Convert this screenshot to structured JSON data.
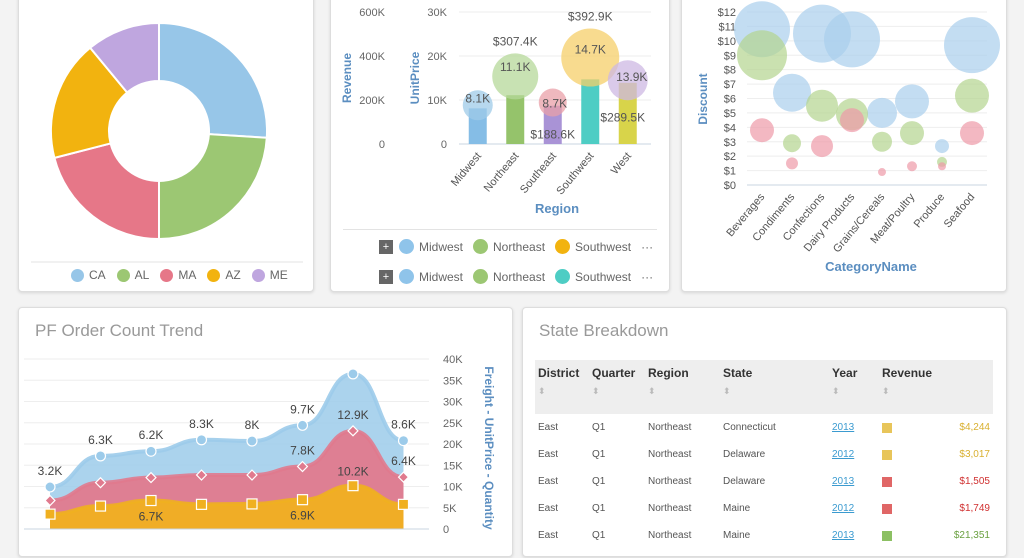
{
  "donut": {
    "legend": [
      {
        "label": "CA",
        "color": "#97c6e8"
      },
      {
        "label": "AL",
        "color": "#9cc773"
      },
      {
        "label": "MA",
        "color": "#e67788"
      },
      {
        "label": "AZ",
        "color": "#f2b30f"
      },
      {
        "label": "ME",
        "color": "#bfa6df"
      }
    ]
  },
  "region_chart": {
    "legend_row1": [
      "Midwest",
      "Northeast",
      "Southwest"
    ],
    "legend_row2": [
      "Midwest",
      "Northeast",
      "Southwest"
    ],
    "more": "···",
    "plus": "+",
    "legend_row1_colors": [
      "#8fc4ea",
      "#9cc773",
      "#f2b30f"
    ],
    "legend_row2_colors": [
      "#8fc4ea",
      "#9cc773",
      "#4ecdc4"
    ]
  },
  "chart_data": [
    {
      "type": "pie",
      "variant": "donut",
      "categories": [
        "CA",
        "AL",
        "MA",
        "AZ",
        "ME"
      ],
      "values": [
        26,
        24,
        21,
        18,
        11
      ],
      "legend": "bottom"
    },
    {
      "type": "bar",
      "categories": [
        "Midwest",
        "Northeast",
        "Southeast",
        "Southwest",
        "West"
      ],
      "xlabel": "Region",
      "ylabel": "UnitPrice",
      "y2label": "Revenue",
      "ylim": [
        0,
        30000
      ],
      "y2lim": [
        0,
        600000
      ],
      "yticks": [
        "0",
        "10K",
        "20K",
        "30K"
      ],
      "y2ticks": [
        "0",
        "200K",
        "400K",
        "600K"
      ],
      "bar_values": [
        8100,
        11100,
        8700,
        14700,
        13900
      ],
      "bar_labels": [
        "8.1K",
        "11.1K",
        "8.7K",
        "14.7K",
        "13.9K"
      ],
      "bar_colors": [
        "#85bde6",
        "#95c36b",
        "#a993d6",
        "#4ecdc4",
        "#d8d44a"
      ],
      "bubble_revenue": [
        176000,
        307400,
        188600,
        392900,
        289500
      ],
      "bubble_labels": [
        "",
        "$307.4K",
        "$188.6K",
        "$392.9K",
        "$289.5K"
      ],
      "bubble_colors": [
        "#9fcbe8",
        "#b6d89a",
        "#eaa0a8",
        "#f5cf6a",
        "#cdb8e3"
      ]
    },
    {
      "type": "scatter",
      "variant": "bubble",
      "categories": [
        "Beverages",
        "Condiments",
        "Confections",
        "Dairy Products",
        "Grains/Cereals",
        "Meat/Poultry",
        "Produce",
        "Seafood"
      ],
      "xlabel": "CategoryName",
      "ylabel": "Discount",
      "ylim": [
        0,
        12
      ],
      "yticks": [
        "$0",
        "$1",
        "$2",
        "$3",
        "$4",
        "$5",
        "$6",
        "$7",
        "$8",
        "$9",
        "$10",
        "$11",
        "$12"
      ],
      "series": [
        {
          "color": "#a9cfec",
          "values": [
            10.8,
            6.4,
            10.5,
            10.1,
            5.0,
            5.8,
            2.7,
            9.7
          ],
          "sizes": [
            28,
            19,
            29,
            28,
            15,
            17,
            7,
            28
          ]
        },
        {
          "color": "#b3d48e",
          "values": [
            9.0,
            2.9,
            5.5,
            4.9,
            3.0,
            3.6,
            1.6,
            6.2
          ],
          "sizes": [
            25,
            9,
            16,
            16,
            10,
            12,
            5,
            17
          ]
        },
        {
          "color": "#ee9aa8",
          "values": [
            3.8,
            1.5,
            2.7,
            4.5,
            0.9,
            1.3,
            1.3,
            3.6
          ],
          "sizes": [
            12,
            6,
            11,
            12,
            4,
            5,
            4,
            12
          ]
        }
      ]
    },
    {
      "type": "area",
      "stacked": true,
      "title": "PF Order Count Trend",
      "y2label": "Freight - UnitPrice - Quantity",
      "ylim": [
        0,
        40000
      ],
      "yticks": [
        "0",
        "5K",
        "10K",
        "15K",
        "20K",
        "25K",
        "30K",
        "35K",
        "40K"
      ],
      "series": [
        {
          "color": "#f0b020",
          "values": [
            3500,
            5400,
            6700,
            5800,
            5900,
            6900,
            10200,
            5800
          ],
          "labels": [
            "",
            "",
            "6.7K",
            "",
            "",
            "6.9K",
            "10.2K",
            ""
          ]
        },
        {
          "color": "#e07a8e",
          "values": [
            3200,
            5500,
            5400,
            6900,
            6800,
            7800,
            12900,
            6400
          ],
          "labels": [
            "",
            "",
            "",
            "",
            "",
            "7.8K",
            "12.9K",
            "6.4K"
          ]
        },
        {
          "color": "#9ccbea",
          "values": [
            3200,
            6300,
            6200,
            8300,
            8000,
            9700,
            13400,
            8600
          ],
          "labels": [
            "3.2K",
            "6.3K",
            "6.2K",
            "8.3K",
            "8K",
            "9.7K",
            "",
            "8.6K"
          ]
        }
      ]
    }
  ],
  "table": {
    "title": "State Breakdown",
    "sort_icon": "⬍",
    "columns": [
      "District",
      "Quarter",
      "Region",
      "State",
      "Year",
      "Revenue"
    ],
    "rows": [
      [
        "East",
        "Q1",
        "Northeast",
        "Connecticut",
        "2013",
        "#e8c55a",
        "$4,244",
        "#d9b030"
      ],
      [
        "East",
        "Q1",
        "Northeast",
        "Delaware",
        "2012",
        "#e8c55a",
        "$3,017",
        "#d9b030"
      ],
      [
        "East",
        "Q1",
        "Northeast",
        "Delaware",
        "2013",
        "#e06666",
        "$1,505",
        "#d03030"
      ],
      [
        "East",
        "Q1",
        "Northeast",
        "Maine",
        "2012",
        "#e06666",
        "$1,749",
        "#d03030"
      ],
      [
        "East",
        "Q1",
        "Northeast",
        "Maine",
        "2013",
        "#8cc063",
        "$21,351",
        "#6aa040"
      ]
    ]
  }
}
